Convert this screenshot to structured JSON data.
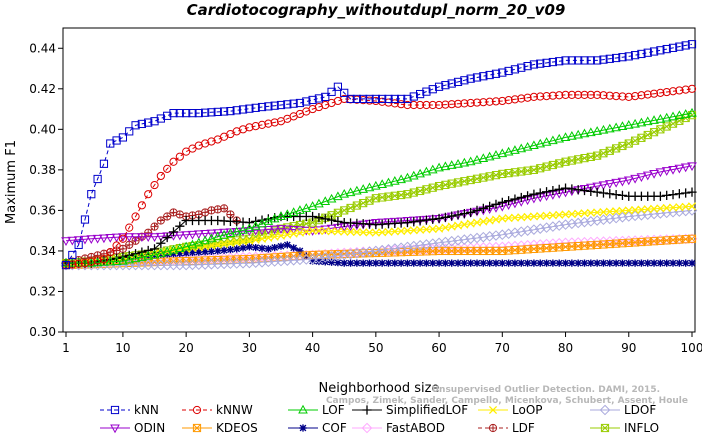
{
  "chart_data": {
    "type": "line",
    "title": "Cardiotocography_withoutdupl_norm_20_v09",
    "xlabel": "Neighborhood size",
    "ylabel": "Maximum F1",
    "xlim": [
      1,
      100
    ],
    "ylim": [
      0.3,
      0.45
    ],
    "x_ticks": [
      1,
      10,
      20,
      30,
      40,
      50,
      60,
      70,
      80,
      90,
      100
    ],
    "y_ticks": [
      0.3,
      0.32,
      0.34,
      0.36,
      0.38,
      0.4,
      0.42,
      0.44
    ],
    "grid": false,
    "legend_position": "bottom",
    "watermark_lines": [
      "Unsupervised Outlier Detection. DAMI, 2015.",
      "Campos, Zimek, Sander, Campello, Micenkova, Schubert, Assent, Houle"
    ],
    "series": [
      {
        "name": "kNN",
        "color": "#0000cc",
        "marker": "square",
        "dashed": true,
        "x": [
          1,
          3,
          5,
          7,
          8,
          10,
          12,
          15,
          18,
          22,
          27,
          32,
          38,
          42,
          44,
          46,
          50,
          55,
          60,
          65,
          70,
          75,
          80,
          85,
          90,
          95,
          100
        ],
        "y": [
          0.333,
          0.343,
          0.368,
          0.383,
          0.393,
          0.396,
          0.402,
          0.404,
          0.408,
          0.408,
          0.409,
          0.411,
          0.413,
          0.416,
          0.421,
          0.415,
          0.415,
          0.415,
          0.421,
          0.425,
          0.428,
          0.432,
          0.434,
          0.434,
          0.436,
          0.439,
          0.442
        ]
      },
      {
        "name": "kNNW",
        "color": "#dd0000",
        "marker": "circle",
        "dashed": true,
        "x": [
          1,
          4,
          7,
          10,
          12,
          14,
          16,
          18,
          20,
          22,
          25,
          28,
          30,
          35,
          40,
          45,
          50,
          55,
          60,
          65,
          70,
          75,
          80,
          85,
          90,
          95,
          100
        ],
        "y": [
          0.333,
          0.334,
          0.336,
          0.346,
          0.357,
          0.368,
          0.377,
          0.384,
          0.389,
          0.392,
          0.395,
          0.399,
          0.401,
          0.404,
          0.41,
          0.415,
          0.414,
          0.412,
          0.412,
          0.413,
          0.414,
          0.416,
          0.417,
          0.417,
          0.416,
          0.418,
          0.42
        ]
      },
      {
        "name": "LOF",
        "color": "#00cc00",
        "marker": "triangle",
        "x": [
          1,
          5,
          10,
          15,
          20,
          25,
          30,
          35,
          40,
          45,
          50,
          55,
          60,
          65,
          70,
          75,
          80,
          85,
          90,
          95,
          100
        ],
        "y": [
          0.334,
          0.334,
          0.335,
          0.338,
          0.342,
          0.347,
          0.351,
          0.357,
          0.362,
          0.368,
          0.372,
          0.376,
          0.381,
          0.384,
          0.388,
          0.392,
          0.396,
          0.399,
          0.402,
          0.405,
          0.408
        ]
      },
      {
        "name": "SimplifiedLOF",
        "color": "#000000",
        "marker": "plus",
        "x": [
          1,
          5,
          10,
          15,
          20,
          25,
          30,
          35,
          40,
          45,
          50,
          55,
          60,
          65,
          70,
          75,
          80,
          85,
          90,
          95,
          100
        ],
        "y": [
          0.334,
          0.334,
          0.337,
          0.341,
          0.355,
          0.355,
          0.354,
          0.357,
          0.357,
          0.354,
          0.353,
          0.354,
          0.356,
          0.359,
          0.364,
          0.368,
          0.371,
          0.369,
          0.367,
          0.367,
          0.369
        ]
      },
      {
        "name": "LoOP",
        "color": "#ffee00",
        "marker": "x",
        "x": [
          1,
          10,
          20,
          30,
          40,
          50,
          60,
          70,
          80,
          90,
          100
        ],
        "y": [
          0.333,
          0.336,
          0.341,
          0.345,
          0.35,
          0.349,
          0.351,
          0.356,
          0.358,
          0.36,
          0.362
        ]
      },
      {
        "name": "LDOF",
        "color": "#aaaadd",
        "marker": "diamond",
        "x": [
          1,
          10,
          20,
          30,
          40,
          50,
          60,
          70,
          80,
          90,
          100
        ],
        "y": [
          0.333,
          0.333,
          0.333,
          0.334,
          0.336,
          0.34,
          0.344,
          0.348,
          0.353,
          0.357,
          0.36
        ]
      },
      {
        "name": "ODIN",
        "color": "#9900cc",
        "marker": "triangle-down",
        "x": [
          1,
          5,
          10,
          15,
          20,
          25,
          30,
          35,
          40,
          45,
          50,
          55,
          60,
          65,
          70,
          75,
          80,
          85,
          90,
          95,
          100
        ],
        "y": [
          0.345,
          0.346,
          0.347,
          0.347,
          0.348,
          0.349,
          0.35,
          0.351,
          0.35,
          0.352,
          0.354,
          0.355,
          0.356,
          0.359,
          0.362,
          0.366,
          0.369,
          0.372,
          0.375,
          0.379,
          0.382
        ]
      },
      {
        "name": "KDEOS",
        "color": "#ff9900",
        "marker": "square-x",
        "x": [
          1,
          10,
          20,
          30,
          40,
          50,
          60,
          70,
          80,
          90,
          100
        ],
        "y": [
          0.333,
          0.334,
          0.335,
          0.336,
          0.338,
          0.339,
          0.34,
          0.34,
          0.342,
          0.344,
          0.346
        ]
      },
      {
        "name": "COF",
        "color": "#000088",
        "marker": "star",
        "x": [
          1,
          5,
          10,
          15,
          20,
          25,
          28,
          30,
          33,
          36,
          38,
          40,
          45,
          50,
          60,
          70,
          80,
          90,
          100
        ],
        "y": [
          0.333,
          0.334,
          0.336,
          0.338,
          0.339,
          0.34,
          0.341,
          0.342,
          0.341,
          0.343,
          0.34,
          0.335,
          0.334,
          0.334,
          0.334,
          0.334,
          0.334,
          0.334,
          0.334
        ]
      },
      {
        "name": "FastABOD",
        "color": "#ffaaff",
        "marker": "diamond",
        "x": [
          1,
          10,
          20,
          30,
          40,
          50,
          60,
          70,
          80,
          90,
          100
        ],
        "y": [
          0.333,
          0.335,
          0.336,
          0.337,
          0.338,
          0.34,
          0.341,
          0.342,
          0.344,
          0.345,
          0.346
        ]
      },
      {
        "name": "LDF",
        "color": "#aa2222",
        "marker": "circle-plus",
        "dashed": true,
        "x": [
          1,
          5,
          10,
          14,
          16,
          18,
          20,
          22,
          24,
          26,
          28
        ],
        "y": [
          0.334,
          0.337,
          0.341,
          0.349,
          0.355,
          0.359,
          0.357,
          0.358,
          0.36,
          0.361,
          0.355
        ]
      },
      {
        "name": "INFLO",
        "color": "#99cc00",
        "marker": "square-x",
        "x": [
          1,
          5,
          10,
          15,
          20,
          25,
          30,
          35,
          40,
          45,
          50,
          55,
          60,
          65,
          70,
          75,
          80,
          85,
          90,
          95,
          100
        ],
        "y": [
          0.334,
          0.335,
          0.337,
          0.339,
          0.342,
          0.344,
          0.346,
          0.351,
          0.354,
          0.36,
          0.366,
          0.368,
          0.372,
          0.375,
          0.378,
          0.38,
          0.384,
          0.387,
          0.393,
          0.4,
          0.407
        ]
      }
    ]
  }
}
